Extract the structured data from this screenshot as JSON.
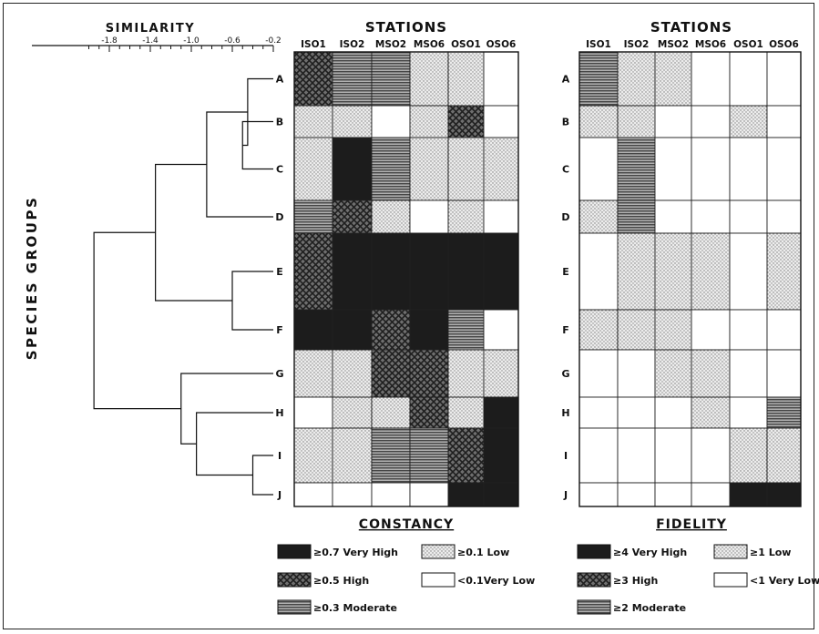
{
  "similarity": {
    "title": "SIMILARITY",
    "ticks": [
      {
        "label": "-1.8",
        "value": -1.8
      },
      {
        "label": "-1.4",
        "value": -1.4
      },
      {
        "label": "-1.0",
        "value": -1.0
      },
      {
        "label": "-0.6",
        "value": -0.6
      },
      {
        "label": "-0.2",
        "value": -0.2
      }
    ]
  },
  "y_axis_label": "SPECIES GROUPS",
  "stations_title": "STATIONS",
  "stations": [
    "ISO1",
    "ISO2",
    "MSO2",
    "MSO6",
    "OSO1",
    "OSO6"
  ],
  "species_groups": [
    "A",
    "B",
    "C",
    "D",
    "E",
    "F",
    "G",
    "H",
    "I",
    "J"
  ],
  "constancy": {
    "title": "CONSTANCY",
    "cells": [
      [
        "high",
        "moderate",
        "moderate",
        "low",
        "low",
        "verylow"
      ],
      [
        "low",
        "low",
        "verylow",
        "low",
        "high",
        "verylow"
      ],
      [
        "low",
        "veryhigh",
        "moderate",
        "low",
        "low",
        "low"
      ],
      [
        "moderate",
        "high",
        "low",
        "verylow",
        "low",
        "verylow"
      ],
      [
        "high",
        "veryhigh",
        "veryhigh",
        "veryhigh",
        "veryhigh",
        "veryhigh"
      ],
      [
        "veryhigh",
        "veryhigh",
        "high",
        "veryhigh",
        "moderate",
        "verylow"
      ],
      [
        "low",
        "low",
        "high",
        "high",
        "low",
        "low"
      ],
      [
        "verylow",
        "low",
        "low",
        "high",
        "low",
        "veryhigh"
      ],
      [
        "low",
        "low",
        "moderate",
        "moderate",
        "high",
        "veryhigh"
      ],
      [
        "verylow",
        "verylow",
        "verylow",
        "verylow",
        "veryhigh",
        "veryhigh"
      ]
    ],
    "legend": [
      {
        "key": "veryhigh",
        "label": "≥0.7 Very High"
      },
      {
        "key": "low",
        "label": "≥0.1 Low"
      },
      {
        "key": "high",
        "label": "≥0.5 High"
      },
      {
        "key": "verylow",
        "label": "<0.1Very Low"
      },
      {
        "key": "moderate",
        "label": "≥0.3 Moderate"
      }
    ]
  },
  "fidelity": {
    "title": "FIDELITY",
    "cells": [
      [
        "moderate",
        "low",
        "low",
        "verylow",
        "verylow",
        "verylow"
      ],
      [
        "low",
        "low",
        "verylow",
        "verylow",
        "low",
        "verylow"
      ],
      [
        "verylow",
        "moderate",
        "verylow",
        "verylow",
        "verylow",
        "verylow"
      ],
      [
        "low",
        "moderate",
        "verylow",
        "verylow",
        "verylow",
        "verylow"
      ],
      [
        "verylow",
        "low",
        "low",
        "low",
        "verylow",
        "low"
      ],
      [
        "low",
        "low",
        "low",
        "verylow",
        "verylow",
        "verylow"
      ],
      [
        "verylow",
        "verylow",
        "low",
        "low",
        "verylow",
        "verylow"
      ],
      [
        "verylow",
        "verylow",
        "verylow",
        "low",
        "verylow",
        "moderate"
      ],
      [
        "verylow",
        "verylow",
        "verylow",
        "verylow",
        "low",
        "low"
      ],
      [
        "verylow",
        "verylow",
        "verylow",
        "verylow",
        "veryhigh",
        "veryhigh"
      ]
    ],
    "legend": [
      {
        "key": "veryhigh",
        "label": "≥4 Very High"
      },
      {
        "key": "low",
        "label": "≥1 Low"
      },
      {
        "key": "high",
        "label": "≥3 High"
      },
      {
        "key": "verylow",
        "label": "<1 Very Low"
      },
      {
        "key": "moderate",
        "label": "≥2 Moderate"
      }
    ]
  },
  "dendrogram_merges": [
    {
      "a": "B",
      "b": "C",
      "similarity": -0.5
    },
    {
      "a": "A",
      "b": "BC",
      "similarity": -0.45
    },
    {
      "a": "ABC",
      "b": "D",
      "similarity": -0.85
    },
    {
      "a": "E",
      "b": "F",
      "similarity": -0.6
    },
    {
      "a": "ABCD",
      "b": "EF",
      "similarity": -1.35
    },
    {
      "a": "I",
      "b": "J",
      "similarity": -0.4
    },
    {
      "a": "H",
      "b": "IJ",
      "similarity": -0.95
    },
    {
      "a": "G",
      "b": "HIJ",
      "similarity": -1.1
    },
    {
      "a": "ABCDEF",
      "b": "GHIJ",
      "similarity": -1.95
    }
  ],
  "colors": {
    "ink": "#111111",
    "veryhigh": "#1c1c1c",
    "moderate_fill": "#8a8a8a",
    "low_fill": "#d6d6d6",
    "high_fill": "#6a6a6a"
  }
}
